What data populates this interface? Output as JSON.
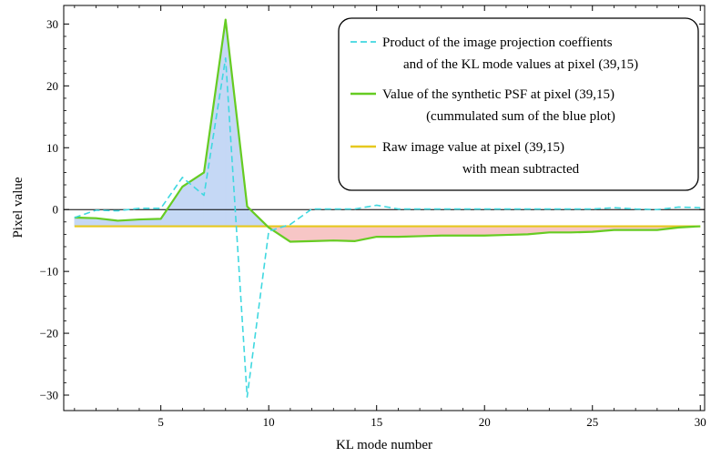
{
  "chart_data": {
    "type": "line",
    "title": "",
    "xlabel": "KL mode number",
    "ylabel": "Pixel value",
    "xlim": [
      0.5,
      30.2
    ],
    "ylim": [
      -32.5,
      33.0
    ],
    "xticks": [
      5,
      10,
      15,
      20,
      25,
      30
    ],
    "yticks": [
      -30,
      -20,
      -10,
      0,
      10,
      20,
      30
    ],
    "xtick_labels": [
      "5",
      "10",
      "15",
      "20",
      "25",
      "30"
    ],
    "ytick_labels": [
      "−30",
      "−20",
      "−10",
      "0",
      "10",
      "20",
      "30"
    ],
    "grid": false,
    "legend_position": "top-right",
    "x": [
      1,
      2,
      3,
      4,
      5,
      6,
      7,
      8,
      9,
      10,
      11,
      12,
      13,
      14,
      15,
      16,
      17,
      18,
      19,
      20,
      21,
      22,
      23,
      24,
      25,
      26,
      27,
      28,
      29,
      30
    ],
    "series": [
      {
        "name": "Product of the image projection coeffients and of the KL mode values at pixel (39,15)",
        "legend_lines": [
          "Product of the image projection coeffients",
          "and of the KL mode values at pixel (39,15)"
        ],
        "color": "#40d8e0",
        "style": "dashed",
        "values": [
          -1.3,
          -0.1,
          -0.2,
          0.2,
          0.2,
          5.2,
          2.3,
          24.5,
          -30.3,
          -3.5,
          -2.4,
          0.1,
          0.1,
          0.1,
          0.7,
          0.1,
          0.1,
          0.1,
          0.1,
          0.1,
          0.1,
          0.1,
          0.1,
          0.1,
          0.1,
          0.3,
          0.1,
          0.0,
          0.4,
          0.3
        ]
      },
      {
        "name": "Value of the synthetic PSF at pixel (39,15) (cummulated sum of the blue plot)",
        "legend_lines": [
          "Value of the synthetic PSF at pixel (39,15)",
          "(cummulated sum of the blue plot)"
        ],
        "color": "#66cc22",
        "style": "solid",
        "values": [
          -1.3,
          -1.4,
          -1.8,
          -1.6,
          -1.5,
          3.7,
          6.0,
          30.7,
          0.5,
          -2.9,
          -5.2,
          -5.1,
          -5.0,
          -5.1,
          -4.4,
          -4.4,
          -4.3,
          -4.2,
          -4.2,
          -4.2,
          -4.1,
          -4.0,
          -3.7,
          -3.7,
          -3.6,
          -3.3,
          -3.3,
          -3.3,
          -2.9,
          -2.7
        ]
      },
      {
        "name": "Raw image value at pixel (39,15) with mean subtracted",
        "legend_lines": [
          "Raw image value at pixel (39,15)",
          "with mean subtracted"
        ],
        "color": "#e6c81e",
        "style": "solid",
        "values": [
          -2.7,
          -2.7,
          -2.7,
          -2.7,
          -2.7,
          -2.7,
          -2.7,
          -2.7,
          -2.7,
          -2.7,
          -2.7,
          -2.7,
          -2.7,
          -2.7,
          -2.7,
          -2.7,
          -2.7,
          -2.7,
          -2.7,
          -2.7,
          -2.7,
          -2.7,
          -2.7,
          -2.7,
          -2.7,
          -2.7,
          -2.7,
          -2.7,
          -2.7,
          -2.7
        ]
      }
    ],
    "fills": {
      "above_color": "#c5d8f5",
      "below_color": "#f7c6c6"
    }
  }
}
